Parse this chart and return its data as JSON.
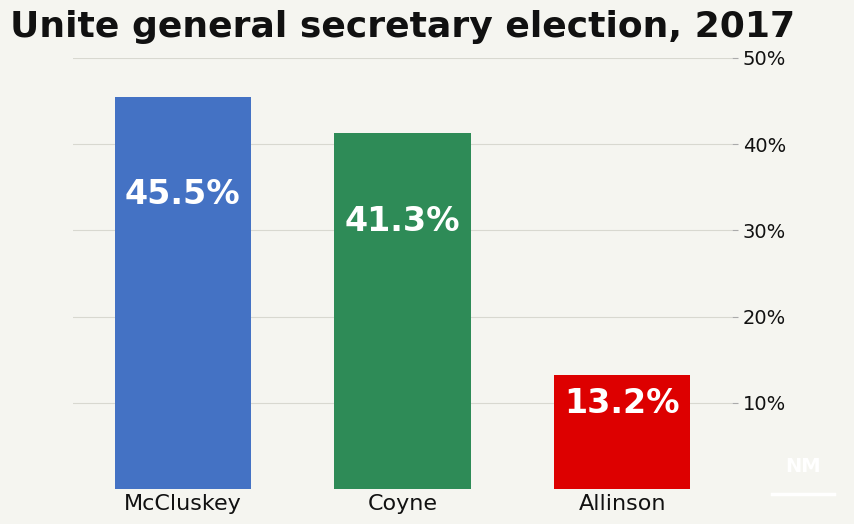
{
  "title": "Unite general secretary election, 2017",
  "categories": [
    "McCluskey",
    "Coyne",
    "Allinson"
  ],
  "values": [
    45.5,
    41.3,
    13.2
  ],
  "labels": [
    "45.5%",
    "41.3%",
    "13.2%"
  ],
  "bar_colors": [
    "#4472C4",
    "#2E8B57",
    "#DD0000"
  ],
  "background_color": "#F5F5F0",
  "ylim": [
    0,
    50
  ],
  "yticks": [
    10,
    20,
    30,
    40,
    50
  ],
  "ytick_labels": [
    "10%",
    "20%",
    "30%",
    "40%",
    "50%"
  ],
  "title_fontsize": 26,
  "label_fontsize": 24,
  "tick_fontsize": 14,
  "category_fontsize": 16,
  "bar_width": 0.62,
  "text_color": "#ffffff",
  "axis_text_color": "#111111",
  "logo_bg": "#111111",
  "logo_text": "NM"
}
